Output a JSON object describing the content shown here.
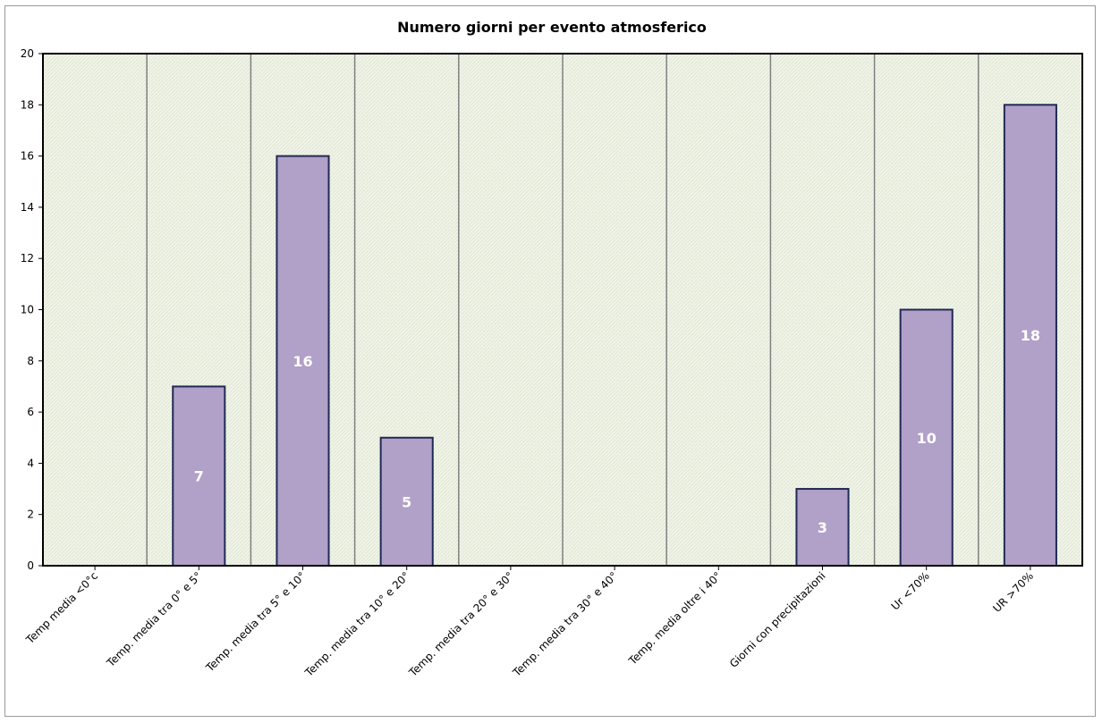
{
  "chart_data": {
    "type": "bar",
    "title": "Numero giorni  per evento atmosferico",
    "xlabel": "",
    "ylabel": "",
    "ylim": [
      0,
      20
    ],
    "yticks": [
      0,
      2,
      4,
      6,
      8,
      10,
      12,
      14,
      16,
      18,
      20
    ],
    "categories": [
      "Temp media <0°c",
      "Temp. media tra 0° e 5°",
      "Temp. media tra 5° e 10°",
      "Temp. media tra 10° e 20°",
      "Temp. media tra 20° e 30°",
      "Temp. media tra 30° e 40°",
      "Temp. media oltre i 40°",
      "Giorni con precipitazioni",
      "Ur  <70%",
      "UR >70%"
    ],
    "values": [
      0,
      7,
      16,
      5,
      0,
      0,
      0,
      3,
      10,
      18
    ],
    "data_labels": [
      "",
      "7",
      "16",
      "5",
      "",
      "",
      "",
      "3",
      "10",
      "18"
    ],
    "grid": "vertical lines between categories",
    "legend": "none",
    "colors": {
      "bar_fill": "#b1a0c7",
      "bar_border": "#1f2a56",
      "plot_background": "#eef2e4",
      "gridline": "#808080",
      "data_label": "#ffffff"
    }
  }
}
